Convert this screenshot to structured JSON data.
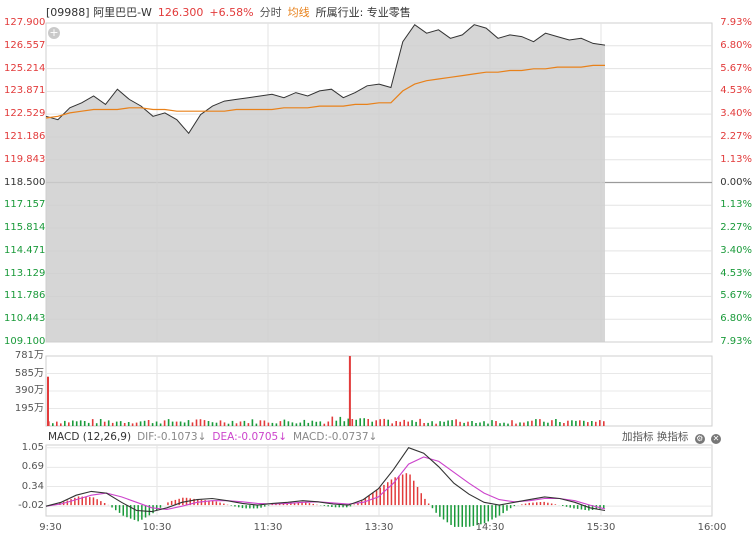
{
  "header": {
    "stock": "[09988] 阿里巴巴-W",
    "price": "126.300",
    "change": "+6.58%",
    "tab_time": "分时",
    "tab_avg": "均线",
    "industry": "所属行业: 专业零售"
  },
  "price_axis": {
    "left": [
      "127.900",
      "126.557",
      "125.214",
      "123.871",
      "122.529",
      "121.186",
      "119.843",
      "118.500",
      "117.157",
      "115.814",
      "114.471",
      "113.129",
      "111.786",
      "110.443",
      "109.100"
    ],
    "right": [
      "7.93%",
      "6.80%",
      "5.67%",
      "4.53%",
      "3.40%",
      "2.27%",
      "1.13%",
      "0.00%",
      "1.13%",
      "2.27%",
      "3.40%",
      "4.53%",
      "5.67%",
      "6.80%",
      "7.93%"
    ]
  },
  "volume_axis": [
    "781万",
    "585万",
    "390万",
    "195万"
  ],
  "macd": {
    "title": "MACD (12,26,9)",
    "dif": "DIF:-0.1073",
    "dea": "DEA:-0.0705",
    "macd": "MACD:-0.0737",
    "arrow": "↓",
    "axis": [
      "1.05",
      "0.69",
      "0.34",
      "-0.02"
    ],
    "add_indicator": "加指标",
    "switch_indicator": "换指标"
  },
  "time_axis": [
    "9:30",
    "10:30",
    "11:30",
    "13:30",
    "14:30",
    "15:30",
    "16:00"
  ],
  "colors": {
    "up": "#e23b3b",
    "down": "#1a9a3a",
    "avg": "#e8811a",
    "dea": "#cc44cc",
    "area": "#cfcfcf"
  },
  "chart_data": {
    "type": "line",
    "title": "",
    "prev_close": 118.5,
    "ylim": [
      109.1,
      127.9
    ],
    "series": [
      {
        "name": "分时",
        "values": [
          122.4,
          122.2,
          122.9,
          123.2,
          123.6,
          123.1,
          124.0,
          123.4,
          123.0,
          122.4,
          122.6,
          122.2,
          121.4,
          122.5,
          123.0,
          123.3,
          123.4,
          123.5,
          123.6,
          123.7,
          123.5,
          123.8,
          123.6,
          123.9,
          124.0,
          123.5,
          123.8,
          124.2,
          124.3,
          124.1,
          126.8,
          127.8,
          127.3,
          127.5,
          127.0,
          127.2,
          127.8,
          127.6,
          127.0,
          127.2,
          127.1,
          126.8,
          127.3,
          127.1,
          126.9,
          127.0,
          126.7,
          126.6
        ]
      },
      {
        "name": "均线",
        "values": [
          122.3,
          122.4,
          122.6,
          122.7,
          122.8,
          122.8,
          122.8,
          122.9,
          122.9,
          122.8,
          122.8,
          122.7,
          122.7,
          122.7,
          122.7,
          122.7,
          122.8,
          122.8,
          122.8,
          122.8,
          122.9,
          122.9,
          122.9,
          123.0,
          123.0,
          123.0,
          123.1,
          123.1,
          123.2,
          123.2,
          123.9,
          124.3,
          124.5,
          124.6,
          124.7,
          124.8,
          124.9,
          125.0,
          125.0,
          125.1,
          125.1,
          125.2,
          125.2,
          125.3,
          125.3,
          125.3,
          125.4,
          125.4
        ]
      }
    ],
    "volume": {
      "ylim": [
        0,
        781
      ],
      "unit": "万",
      "spikes": [
        {
          "session_fraction": 0.0,
          "value": 550
        },
        {
          "session_fraction": 0.54,
          "value": 781
        }
      ]
    },
    "macd_series": {
      "ylim": [
        -0.2,
        1.1
      ],
      "dif": [
        -0.02,
        0.05,
        0.18,
        0.25,
        0.22,
        0.05,
        -0.1,
        -0.12,
        -0.05,
        0.05,
        0.1,
        0.12,
        0.08,
        0.03,
        0.0,
        0.03,
        0.05,
        0.08,
        0.06,
        0.02,
        0.0,
        0.1,
        0.3,
        0.65,
        1.05,
        0.95,
        0.7,
        0.4,
        0.2,
        0.05,
        0.0,
        0.05,
        0.1,
        0.15,
        0.12,
        0.05,
        -0.05,
        -0.1
      ],
      "dea": [
        -0.02,
        0.02,
        0.1,
        0.18,
        0.22,
        0.15,
        0.05,
        -0.05,
        -0.08,
        -0.02,
        0.05,
        0.08,
        0.08,
        0.06,
        0.03,
        0.02,
        0.03,
        0.05,
        0.06,
        0.04,
        0.02,
        0.05,
        0.15,
        0.4,
        0.75,
        0.88,
        0.8,
        0.6,
        0.4,
        0.22,
        0.1,
        0.06,
        0.08,
        0.12,
        0.12,
        0.08,
        0.0,
        -0.07
      ]
    }
  }
}
